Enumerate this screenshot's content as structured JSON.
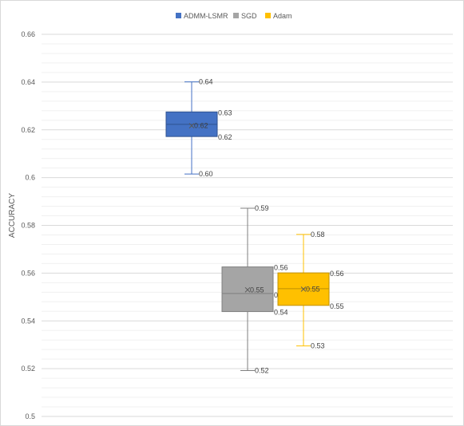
{
  "chart_data": {
    "type": "box",
    "title": "",
    "xlabel": "",
    "ylabel": "ACCURACY",
    "ylim": [
      0.5,
      0.66
    ],
    "yticks": [
      0.5,
      0.52,
      0.54,
      0.56,
      0.58,
      0.6,
      0.62,
      0.64,
      0.66
    ],
    "ytick_labels": [
      "0.5",
      "0.52",
      "0.54",
      "0.56",
      "0.58",
      "0.6",
      "0.62",
      "0.64",
      "0.66"
    ],
    "grid": true,
    "legend_position": "top",
    "series": [
      {
        "name": "ADMM-LSMR",
        "color": "#4472c4",
        "min": 0.6015,
        "q1": 0.6172,
        "median": 0.6223,
        "q3": 0.6275,
        "max": 0.6401,
        "mean": 0.6217,
        "labels": {
          "max": "0.64",
          "q3": "0.63",
          "mean": "0.62",
          "q1": "0.62",
          "min": "0.60"
        }
      },
      {
        "name": "SGD",
        "color": "#a5a5a5",
        "min": 0.5192,
        "q1": 0.5439,
        "median": 0.5515,
        "q3": 0.5626,
        "max": 0.5872,
        "mean": 0.553,
        "labels": {
          "max": "0.59",
          "q3": "0.56",
          "mean": "0.55",
          "median": "0.55",
          "q1": "0.54",
          "min": "0.52"
        }
      },
      {
        "name": "Adam",
        "color": "#ffc000",
        "min": 0.5295,
        "q1": 0.5465,
        "median": 0.5535,
        "q3": 0.5601,
        "max": 0.5762,
        "mean": 0.5533,
        "labels": {
          "max": "0.58",
          "q3": "0.56",
          "mean": "0.55",
          "q1": "0.55",
          "min": "0.53"
        }
      }
    ]
  }
}
